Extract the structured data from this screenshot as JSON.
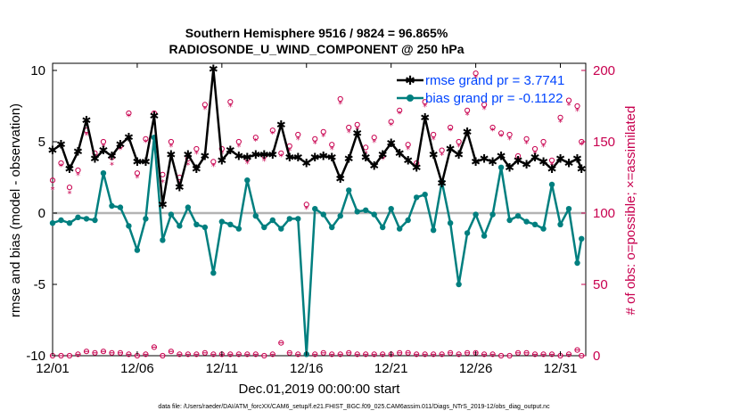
{
  "chart_data": {
    "type": "line",
    "title_line1": "Southern Hemisphere 9516 / 9824 = 96.865%",
    "title_line2": "RADIOSONDE_U_WIND_COMPONENT @ 250 hPa",
    "xlabel": "Dec.01,2019 00:00:00 start",
    "ylabel": "rmse and bias (model - observation)",
    "y2label": "# of obs: o=possible; ×=assimilated",
    "footer": "data file: /Users/raeder/DAI/ATM_forcXX/CAM6_setup/f.e21.FHIST_BGC.f09_025.CAM6assim.011/Diags_NTrS_2019-12/obs_diag_output.nc",
    "x_ticks": [
      {
        "value": 0,
        "label": "12/01"
      },
      {
        "value": 5,
        "label": "12/06"
      },
      {
        "value": 10,
        "label": "12/11"
      },
      {
        "value": 15,
        "label": "12/16"
      },
      {
        "value": 20,
        "label": "12/21"
      },
      {
        "value": 25,
        "label": "12/26"
      },
      {
        "value": 30,
        "label": "12/31"
      }
    ],
    "y_ticks": [
      {
        "value": 10,
        "label": "10"
      },
      {
        "value": 5,
        "label": "5"
      },
      {
        "value": 0,
        "label": "0"
      },
      {
        "value": -5,
        "label": "-5"
      },
      {
        "value": -10,
        "label": "-10"
      }
    ],
    "y2_ticks": [
      {
        "value": 0,
        "label": "0"
      },
      {
        "value": 50,
        "label": "50"
      },
      {
        "value": 100,
        "label": "100"
      },
      {
        "value": 150,
        "label": "150"
      },
      {
        "value": 200,
        "label": "200"
      }
    ],
    "xlim": [
      0,
      31.5
    ],
    "ylim": [
      -10,
      10.5
    ],
    "y2lim": [
      0,
      205
    ],
    "colors": {
      "rmse": "#000000",
      "bias": "#007f7f",
      "obs": "#c8004f",
      "zero": "#b4b4b4",
      "legend_text": "#0044ff"
    },
    "series": [
      {
        "name": "rmse grand pr = 3.7741",
        "x": [
          0,
          0.5,
          1,
          1.5,
          2,
          2.5,
          3,
          3.5,
          4,
          4.5,
          5,
          5.5,
          6,
          6.5,
          7,
          7.5,
          8,
          8.5,
          9,
          9.5,
          10,
          10.5,
          11,
          11.5,
          12,
          12.5,
          13,
          13.5,
          14,
          14.5,
          15,
          15.5,
          16,
          16.5,
          17,
          17.5,
          18,
          18.5,
          19,
          19.5,
          20,
          20.5,
          21,
          21.5,
          22,
          22.5,
          23,
          23.5,
          24,
          24.5,
          25,
          25.5,
          26,
          26.5,
          27,
          27.5,
          28,
          28.5,
          29,
          29.5,
          30,
          30.5,
          31,
          31.25
        ],
        "values": [
          4.4,
          4.8,
          3.1,
          4.3,
          6.5,
          3.8,
          4.4,
          4.0,
          4.8,
          5.3,
          3.6,
          3.6,
          6.8,
          0.6,
          4.1,
          1.8,
          4.1,
          3.1,
          4.0,
          10.1,
          3.7,
          4.4,
          4.0,
          3.9,
          4.1,
          4.1,
          4.1,
          6.2,
          3.9,
          3.9,
          3.5,
          3.9,
          4.0,
          3.9,
          2.4,
          3.8,
          5.6,
          3.9,
          3.3,
          4.1,
          4.9,
          4.2,
          3.7,
          3.2,
          6.7,
          4.1,
          2.1,
          4.5,
          4.1,
          5.7,
          3.6,
          3.8,
          3.6,
          4.0,
          3.2,
          3.7,
          3.4,
          3.9,
          3.6,
          3.1,
          3.8,
          3.5,
          3.8,
          3.1
        ]
      },
      {
        "name": "bias grand pr = -0.1122",
        "x": [
          0,
          0.5,
          1,
          1.5,
          2,
          2.5,
          3,
          3.5,
          4,
          4.5,
          5,
          5.5,
          6,
          6.5,
          7,
          7.5,
          8,
          8.5,
          9,
          9.5,
          10,
          10.5,
          11,
          11.5,
          12,
          12.5,
          13,
          13.5,
          14,
          14.5,
          15,
          15.5,
          16,
          16.5,
          17,
          17.5,
          18,
          18.5,
          19,
          19.5,
          20,
          20.5,
          21,
          21.5,
          22,
          22.5,
          23,
          23.5,
          24,
          24.5,
          25,
          25.5,
          26,
          26.5,
          27,
          27.5,
          28,
          28.5,
          29,
          29.5,
          30,
          30.5,
          31,
          31.25
        ],
        "values": [
          -0.7,
          -0.5,
          -0.7,
          -0.3,
          -0.4,
          -0.5,
          2.8,
          0.5,
          0.4,
          -0.9,
          -2.6,
          -0.4,
          5.3,
          -1.9,
          -0.1,
          -0.9,
          0.4,
          -0.8,
          -1.0,
          -4.2,
          -0.6,
          -0.8,
          -1.1,
          2.3,
          -0.2,
          -1.0,
          -0.5,
          -1.1,
          -0.4,
          -0.4,
          -9.9,
          0.3,
          -0.1,
          -1.0,
          -0.2,
          1.6,
          0.1,
          0.2,
          -0.1,
          -1.0,
          0.3,
          -1.1,
          -0.5,
          1.1,
          1.3,
          -1.2,
          2.2,
          -0.7,
          -5.0,
          -1.4,
          -0.1,
          -1.6,
          -0.1,
          3.2,
          -0.5,
          -0.2,
          -0.6,
          -0.8,
          -1.1,
          2.0,
          -0.8,
          0.3,
          -3.5,
          -1.8
        ]
      }
    ],
    "obs_possible": {
      "x": [
        0,
        0.5,
        1,
        1.5,
        2,
        2.5,
        3,
        3.5,
        4,
        4.5,
        5,
        5.5,
        6,
        6.5,
        7,
        7.5,
        8,
        8.5,
        9,
        9.5,
        10,
        10.5,
        11,
        11.5,
        12,
        12.5,
        13,
        13.5,
        14,
        14.5,
        15,
        15.5,
        16,
        16.5,
        17,
        17.5,
        18,
        18.5,
        19,
        19.5,
        20,
        20.5,
        21,
        21.5,
        22,
        22.5,
        23,
        23.5,
        24,
        24.5,
        25,
        25.5,
        26,
        26.5,
        27,
        27.5,
        28,
        28.5,
        29,
        29.5,
        30,
        30.5,
        31,
        31.25
      ],
      "values": [
        123,
        135,
        118,
        130,
        158,
        142,
        150,
        139,
        147,
        170,
        128,
        152,
        170,
        127,
        150,
        125,
        138,
        145,
        176,
        136,
        145,
        178,
        150,
        138,
        153,
        140,
        158,
        142,
        147,
        155,
        106,
        152,
        157,
        148,
        180,
        160,
        162,
        146,
        153,
        140,
        164,
        172,
        148,
        135,
        178,
        155,
        144,
        160,
        150,
        172,
        198,
        176,
        160,
        156,
        155,
        140,
        152,
        145,
        150,
        137,
        167,
        179,
        175,
        150
      ]
    },
    "obs_assimilated": {
      "x": [
        0,
        0.5,
        1,
        1.5,
        2,
        2.5,
        3,
        3.5,
        4,
        4.5,
        5,
        5.5,
        6,
        6.5,
        7,
        7.5,
        8,
        8.5,
        9,
        9.5,
        10,
        10.5,
        11,
        11.5,
        12,
        12.5,
        13,
        13.5,
        14,
        14.5,
        15,
        15.5,
        16,
        16.5,
        17,
        17.5,
        18,
        18.5,
        19,
        19.5,
        20,
        20.5,
        21,
        21.5,
        22,
        22.5,
        23,
        23.5,
        24,
        24.5,
        25,
        25.5,
        26,
        26.5,
        27,
        27.5,
        28,
        28.5,
        29,
        29.5,
        30,
        30.5,
        31,
        31.25
      ],
      "values": [
        117,
        133,
        114,
        127,
        155,
        139,
        147,
        134,
        145,
        168,
        125,
        150,
        168,
        122,
        147,
        121,
        134,
        142,
        173,
        133,
        142,
        175,
        147,
        135,
        151,
        137,
        156,
        140,
        144,
        152,
        103,
        149,
        154,
        145,
        177,
        157,
        159,
        142,
        150,
        138,
        162,
        170,
        145,
        132,
        175,
        152,
        141,
        158,
        147,
        169,
        195,
        173,
        158,
        154,
        152,
        137,
        149,
        142,
        147,
        134,
        164,
        176,
        172,
        148
      ]
    },
    "obs_bottom_possible": {
      "x": [
        0,
        0.5,
        1,
        1.5,
        2,
        2.5,
        3,
        3.5,
        4,
        4.5,
        5,
        5.5,
        6,
        6.5,
        7,
        7.5,
        8,
        8.5,
        9,
        9.5,
        10,
        10.5,
        11,
        11.5,
        12,
        12.5,
        13,
        13.5,
        14,
        14.5,
        15,
        15.5,
        16,
        16.5,
        17,
        17.5,
        18,
        18.5,
        19,
        19.5,
        20,
        20.5,
        21,
        21.5,
        22,
        22.5,
        23,
        23.5,
        24,
        24.5,
        25,
        25.5,
        26,
        26.5,
        27,
        27.5,
        28,
        28.5,
        29,
        29.5,
        30,
        30.5,
        31,
        31.25
      ],
      "values": [
        0,
        0,
        0,
        1,
        3,
        2,
        3,
        2,
        2,
        1,
        0,
        1,
        6,
        0,
        3,
        1,
        1,
        1,
        2,
        1,
        1,
        1,
        1,
        1,
        1,
        0,
        1,
        9,
        2,
        1,
        1,
        1,
        2,
        1,
        1,
        2,
        1,
        1,
        1,
        1,
        1,
        2,
        2,
        1,
        1,
        1,
        1,
        2,
        1,
        2,
        2,
        1,
        1,
        0,
        0,
        2,
        2,
        1,
        1,
        1,
        0,
        1,
        4,
        0
      ]
    }
  }
}
